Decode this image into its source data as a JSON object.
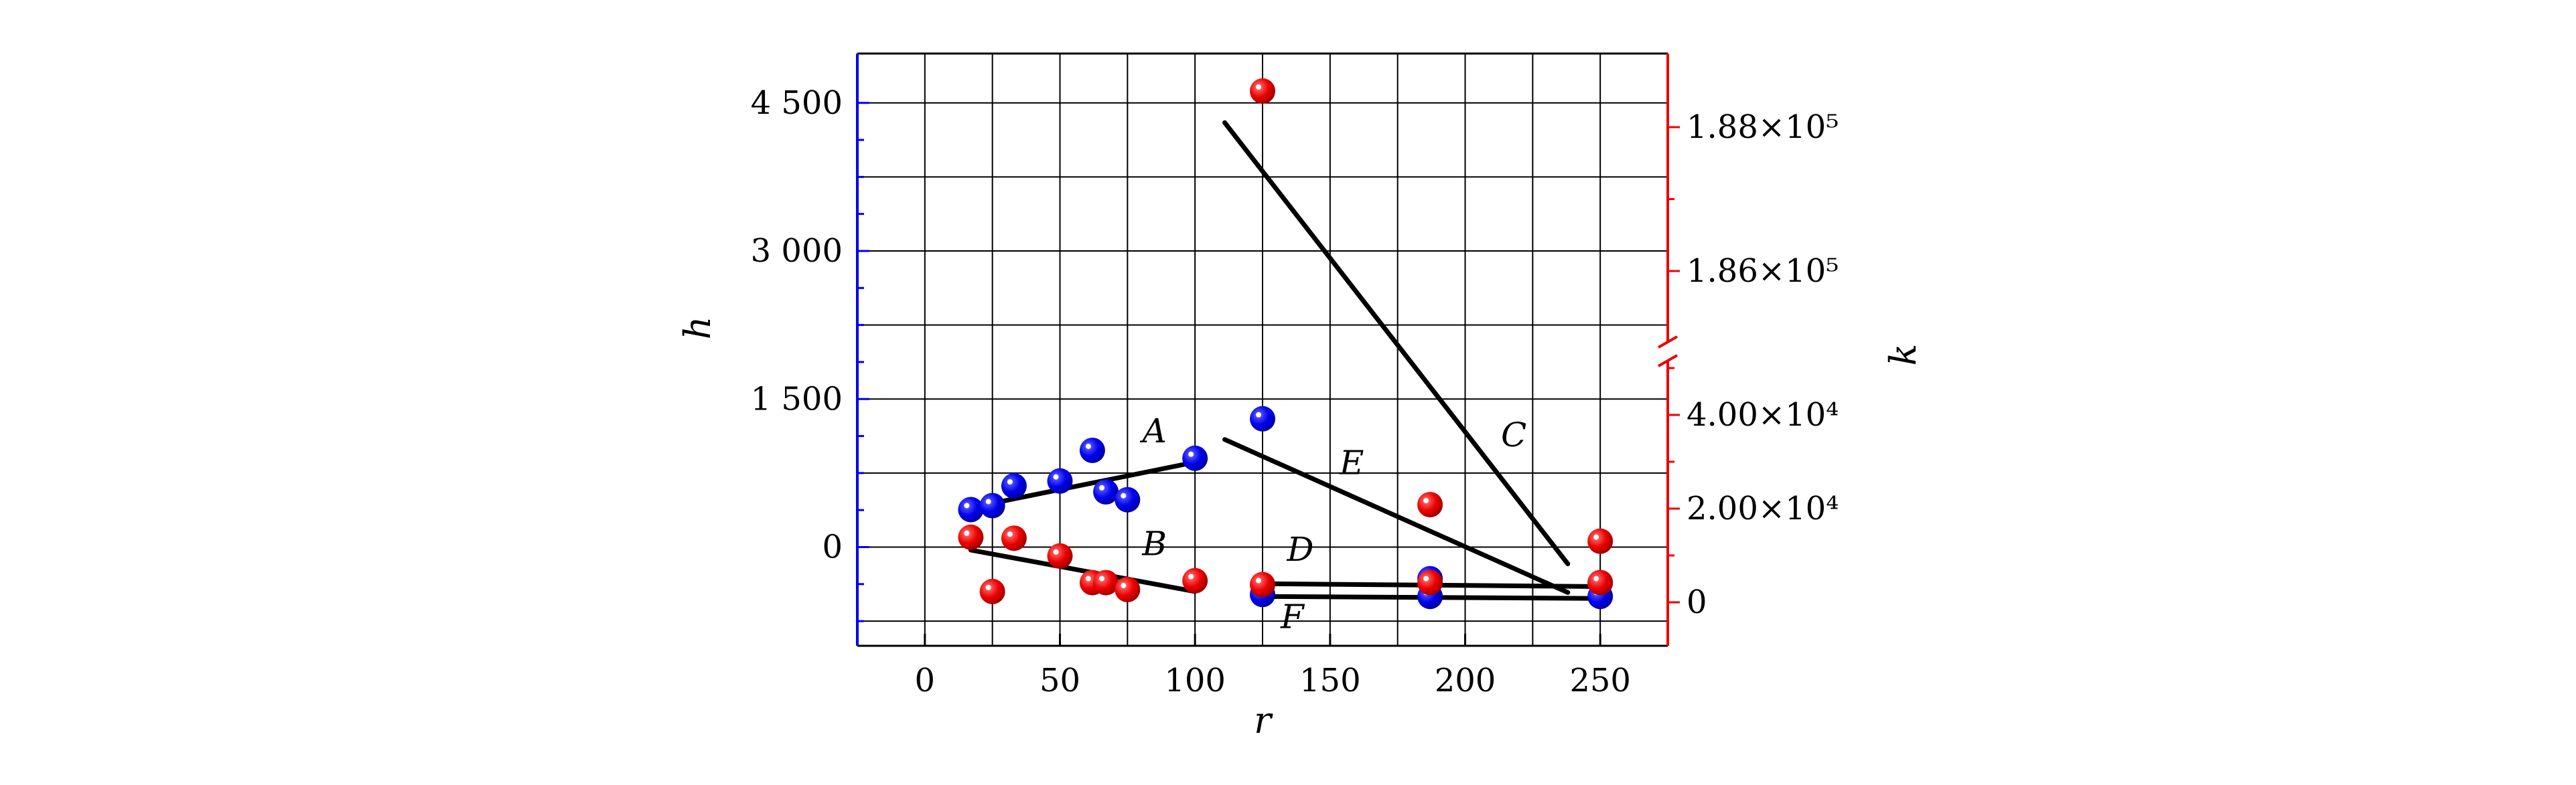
{
  "chart_data": {
    "type": "scatter",
    "xlabel": "r",
    "ylabel_left": "h",
    "ylabel_right": "k",
    "x_ticks": [
      0,
      50,
      100,
      150,
      200,
      250
    ],
    "x_tick_labels": [
      "0",
      "50",
      "100",
      "150",
      "200",
      "250"
    ],
    "x_range": [
      -25,
      275
    ],
    "y_left": {
      "range": [
        -1000,
        5000
      ],
      "ticks": [
        0,
        1500,
        3000,
        4500
      ],
      "tick_labels": [
        "0",
        "1 500",
        "3 000",
        "4 500"
      ]
    },
    "y_right": {
      "broken": true,
      "lower_ticks": [
        0,
        20000,
        40000
      ],
      "lower_tick_labels": [
        "0",
        "2.00×10⁴",
        "4.00×10⁴"
      ],
      "upper_ticks": [
        186000,
        188000
      ],
      "upper_tick_labels": [
        "1.86×10⁵",
        "1.88×10⁵"
      ]
    },
    "grid": true,
    "colors": {
      "blue": "#0000ee",
      "red": "#ee0000",
      "line": "#000000"
    },
    "series": [
      {
        "color": "blue",
        "axis": "left",
        "points": [
          {
            "x": 17,
            "y": 380
          },
          {
            "x": 25,
            "y": 420
          },
          {
            "x": 33,
            "y": 620
          },
          {
            "x": 50,
            "y": 670
          },
          {
            "x": 62,
            "y": 980
          },
          {
            "x": 67,
            "y": 560
          },
          {
            "x": 75,
            "y": 480
          },
          {
            "x": 100,
            "y": 900
          },
          {
            "x": 125,
            "y": 1300
          },
          {
            "x": 125,
            "y": -480
          },
          {
            "x": 187,
            "y": -320
          },
          {
            "x": 187,
            "y": -500
          },
          {
            "x": 250,
            "y": -360
          },
          {
            "x": 250,
            "y": -500
          }
        ]
      },
      {
        "color": "red",
        "axis": "left",
        "points": [
          {
            "x": 17,
            "y": 100
          },
          {
            "x": 25,
            "y": -450
          },
          {
            "x": 33,
            "y": 90
          },
          {
            "x": 50,
            "y": -90
          },
          {
            "x": 62,
            "y": -360
          },
          {
            "x": 67,
            "y": -360
          },
          {
            "x": 75,
            "y": -430
          },
          {
            "x": 100,
            "y": -340
          },
          {
            "x": 125,
            "y": 4620
          },
          {
            "x": 125,
            "y": -380
          },
          {
            "x": 187,
            "y": 430
          },
          {
            "x": 187,
            "y": -360
          },
          {
            "x": 250,
            "y": 60
          },
          {
            "x": 250,
            "y": -360
          }
        ]
      }
    ],
    "fit_lines": [
      {
        "label": "A",
        "x": [
          17,
          100
        ],
        "y": [
          400,
          860
        ],
        "label_pos": [
          85,
          1060
        ]
      },
      {
        "label": "B",
        "x": [
          17,
          100
        ],
        "y": [
          -30,
          -450
        ],
        "label_pos": [
          85,
          -80
        ]
      },
      {
        "label": "C",
        "x": [
          111,
          238
        ],
        "y": [
          4300,
          -170
        ],
        "label_pos": [
          218,
          1020
        ]
      },
      {
        "label": "D",
        "x": [
          122,
          250
        ],
        "y": [
          -370,
          -400
        ],
        "label_pos": [
          139,
          -140
        ]
      },
      {
        "label": "E",
        "x": [
          111,
          238
        ],
        "y": [
          1090,
          -460
        ],
        "label_pos": [
          158,
          740
        ]
      },
      {
        "label": "F",
        "x": [
          122,
          250
        ],
        "y": [
          -500,
          -520
        ],
        "label_pos": [
          136,
          -820
        ]
      }
    ]
  }
}
